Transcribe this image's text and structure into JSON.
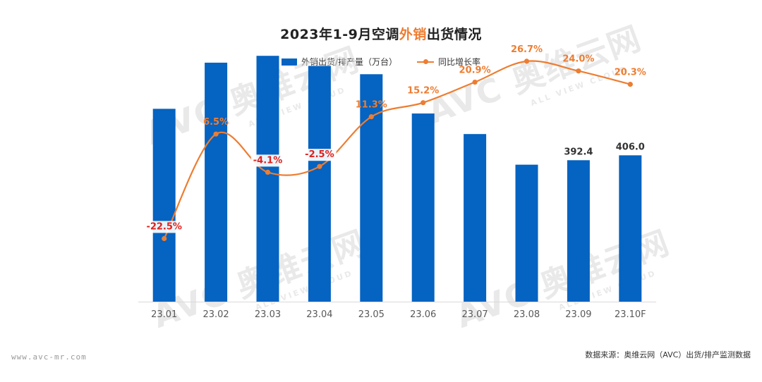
{
  "title": {
    "part1": "2023年1-9月空调",
    "highlight": "外销",
    "part2": "出货情况"
  },
  "legend": {
    "bar_label": "外销出货/排产量（万台）",
    "line_label": "同比增长率"
  },
  "chart_data": {
    "type": "bar",
    "categories": [
      "23.01",
      "23.02",
      "23.03",
      "23.04",
      "23.05",
      "23.06",
      "23.07",
      "23.08",
      "23.09",
      "23.10F"
    ],
    "series": [
      {
        "name": "外销出货/排产量（万台）",
        "type": "bar",
        "values": [
          535,
          663,
          682,
          654,
          631,
          522,
          465,
          380,
          392.4,
          406.0
        ],
        "value_labels": [
          "",
          "",
          "",
          "",
          "",
          "",
          "",
          "",
          "392.4",
          "406.0"
        ],
        "color": "#0563c1"
      },
      {
        "name": "同比增长率",
        "type": "line",
        "values": [
          -22.5,
          6.5,
          -4.1,
          -2.5,
          11.3,
          15.2,
          20.9,
          26.7,
          24.0,
          20.3
        ],
        "value_labels": [
          "-22.5%",
          "6.5%",
          "-4.1%",
          "-2.5%",
          "11.3%",
          "15.2%",
          "20.9%",
          "26.7%",
          "24.0%",
          "20.3%"
        ],
        "color": "#ed7d31",
        "negative_color": "#e0201b"
      }
    ],
    "ylim_bar": [
      0,
      700
    ],
    "ylim_line": [
      -40,
      30
    ],
    "grid": false,
    "legend_position": "top"
  },
  "footer": {
    "website": "www.avc-mr.com",
    "source": "数据来源：奥维云网（AVC）出货/排产监测数据"
  },
  "watermark": {
    "text": "AVC 奥维云网",
    "sub": "ALL VIEW CLOUD"
  }
}
